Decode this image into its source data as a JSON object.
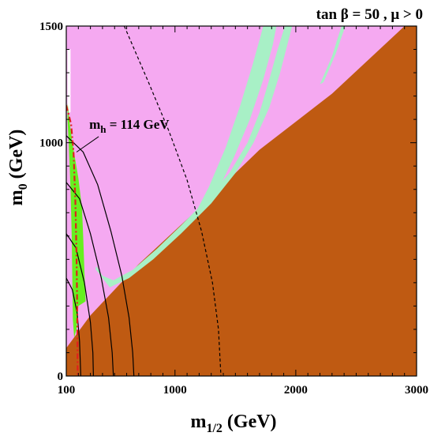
{
  "chart_data": {
    "type": "area",
    "title": "tan β = 50 ,  μ > 0",
    "xlabel": "m",
    "xlabel_sub": "1/2",
    "xlabel_unit": " (GeV)",
    "ylabel": "m",
    "ylabel_sub": "0",
    "ylabel_unit": " (GeV)",
    "xlim": [
      100,
      3000
    ],
    "ylim": [
      0,
      1500
    ],
    "x_tick_values": [
      100,
      1000,
      2000,
      3000
    ],
    "x_ticks": [
      "100",
      "1000",
      "2000",
      "3000"
    ],
    "y_tick_values": [
      0,
      1000,
      1500
    ],
    "y_ticks": [
      "0",
      "1000",
      "1500"
    ],
    "grid": false,
    "annotation": {
      "text_main": "m",
      "text_sub": "h",
      "text_rest": " = 114 GeV",
      "at": [
        290,
        1060
      ],
      "arrow_to": [
        185,
        960
      ]
    },
    "colors": {
      "background_region": "#f5a9f1",
      "excluded_region": "#bf5a12",
      "relic_density_band": "#a8f0c6",
      "bsg_excluded": "#66f020",
      "white_patch": "#ffffff",
      "mh_line": "#e0201c"
    },
    "regions": [
      {
        "name": "excluded (charged LSP)",
        "color_key": "excluded_region",
        "points": [
          [
            100,
            120
          ],
          [
            300,
            260
          ],
          [
            700,
            480
          ],
          [
            1200,
            720
          ],
          [
            1700,
            970
          ],
          [
            2300,
            1210
          ],
          [
            2900,
            1500
          ],
          [
            3000,
            1500
          ],
          [
            3000,
            0
          ],
          [
            100,
            0
          ]
        ]
      },
      {
        "name": "relic density band (lower branch)",
        "color_key": "relic_density_band",
        "points": [
          [
            340,
            460
          ],
          [
            460,
            380
          ],
          [
            620,
            420
          ],
          [
            820,
            500
          ],
          [
            1050,
            610
          ],
          [
            1300,
            740
          ],
          [
            1500,
            870
          ],
          [
            1650,
            1000
          ],
          [
            1780,
            1150
          ],
          [
            1870,
            1300
          ],
          [
            1930,
            1420
          ],
          [
            1970,
            1500
          ],
          [
            1910,
            1500
          ],
          [
            1850,
            1400
          ],
          [
            1780,
            1270
          ],
          [
            1700,
            1130
          ],
          [
            1600,
            1000
          ],
          [
            1450,
            870
          ],
          [
            1250,
            750
          ],
          [
            1050,
            645
          ],
          [
            850,
            545
          ],
          [
            650,
            455
          ],
          [
            490,
            410
          ],
          [
            400,
            430
          ],
          [
            350,
            470
          ]
        ]
      },
      {
        "name": "relic density band (funnel)",
        "color_key": "relic_density_band",
        "points": [
          [
            1160,
            690
          ],
          [
            1280,
            810
          ],
          [
            1420,
            980
          ],
          [
            1540,
            1160
          ],
          [
            1640,
            1330
          ],
          [
            1710,
            1460
          ],
          [
            1730,
            1500
          ],
          [
            1840,
            1500
          ],
          [
            1810,
            1420
          ],
          [
            1730,
            1270
          ],
          [
            1620,
            1100
          ],
          [
            1490,
            940
          ],
          [
            1360,
            800
          ],
          [
            1260,
            720
          ]
        ]
      },
      {
        "name": "relic density band (far branch)",
        "color_key": "relic_density_band",
        "points": [
          [
            2200,
            1250
          ],
          [
            2300,
            1370
          ],
          [
            2360,
            1470
          ],
          [
            2380,
            1500
          ],
          [
            2410,
            1500
          ],
          [
            2330,
            1380
          ],
          [
            2230,
            1260
          ]
        ]
      },
      {
        "name": "white patch",
        "color_key": "white_patch",
        "points": [
          [
            110,
            1400
          ],
          [
            135,
            1400
          ],
          [
            135,
            1130
          ],
          [
            110,
            1130
          ]
        ]
      },
      {
        "name": "b→sγ excluded",
        "color_key": "bsg_excluded",
        "points": [
          [
            112,
            1170
          ],
          [
            125,
            1100
          ],
          [
            150,
            1000
          ],
          [
            200,
            850
          ],
          [
            230,
            720
          ],
          [
            240,
            600
          ],
          [
            250,
            450
          ],
          [
            260,
            320
          ],
          [
            200,
            300
          ],
          [
            185,
            200
          ],
          [
            165,
            165
          ],
          [
            155,
            240
          ],
          [
            150,
            400
          ],
          [
            145,
            600
          ],
          [
            135,
            800
          ],
          [
            120,
            1000
          ],
          [
            110,
            1100
          ]
        ]
      }
    ],
    "series": [
      {
        "line_style": "dashed",
        "color": "#000000",
        "points": [
          [
            580,
            1500
          ],
          [
            780,
            1260
          ],
          [
            950,
            1050
          ],
          [
            1100,
            840
          ],
          [
            1220,
            620
          ],
          [
            1310,
            400
          ],
          [
            1360,
            200
          ],
          [
            1380,
            0
          ]
        ]
      },
      {
        "line_style": "solid",
        "color": "#000000",
        "points": [
          [
            100,
            1030
          ],
          [
            240,
            960
          ],
          [
            360,
            820
          ],
          [
            470,
            620
          ],
          [
            560,
            430
          ],
          [
            620,
            250
          ],
          [
            650,
            100
          ],
          [
            660,
            0
          ]
        ]
      },
      {
        "line_style": "solid",
        "color": "#000000",
        "points": [
          [
            100,
            830
          ],
          [
            210,
            760
          ],
          [
            300,
            610
          ],
          [
            390,
            420
          ],
          [
            450,
            250
          ],
          [
            480,
            100
          ],
          [
            490,
            0
          ]
        ]
      },
      {
        "line_style": "solid",
        "color": "#000000",
        "points": [
          [
            100,
            610
          ],
          [
            180,
            550
          ],
          [
            250,
            400
          ],
          [
            300,
            230
          ],
          [
            320,
            100
          ],
          [
            325,
            0
          ]
        ]
      },
      {
        "line_style": "solid",
        "color": "#000000",
        "points": [
          [
            100,
            420
          ],
          [
            150,
            370
          ],
          [
            190,
            270
          ],
          [
            210,
            150
          ],
          [
            220,
            0
          ]
        ]
      },
      {
        "line_style": "dashdot",
        "color": "#e0201c",
        "points": [
          [
            100,
            1160
          ],
          [
            140,
            1080
          ],
          [
            160,
            960
          ],
          [
            175,
            750
          ],
          [
            185,
            520
          ],
          [
            190,
            300
          ],
          [
            195,
            0
          ]
        ]
      }
    ]
  }
}
